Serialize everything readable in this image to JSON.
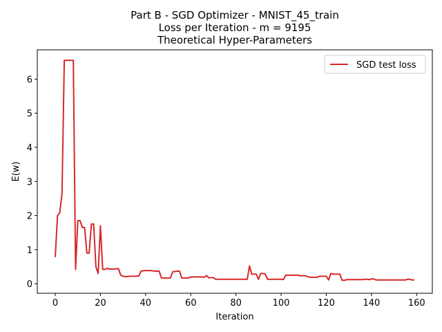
{
  "chart_data": {
    "type": "line",
    "title": [
      "Part B -  SGD Optimizer - MNIST_45_train",
      "Loss per Iteration - m = 9195",
      "Theoretical Hyper-Parameters"
    ],
    "xlabel": "Iteration",
    "ylabel": "E(w)",
    "x": [
      0,
      1,
      2,
      3,
      4,
      5,
      6,
      7,
      8,
      9,
      10,
      11,
      12,
      13,
      14,
      15,
      16,
      17,
      18,
      19,
      20,
      21,
      22,
      23,
      24,
      25,
      26,
      27,
      28,
      29,
      30,
      31,
      32,
      33,
      34,
      35,
      36,
      37,
      38,
      39,
      40,
      41,
      42,
      43,
      44,
      45,
      46,
      47,
      48,
      49,
      50,
      51,
      52,
      53,
      54,
      55,
      56,
      57,
      58,
      59,
      60,
      61,
      62,
      63,
      64,
      65,
      66,
      67,
      68,
      69,
      70,
      71,
      72,
      73,
      74,
      75,
      76,
      77,
      78,
      79,
      80,
      81,
      82,
      83,
      84,
      85,
      86,
      87,
      88,
      89,
      90,
      91,
      92,
      93,
      94,
      95,
      96,
      97,
      98,
      99,
      100,
      101,
      102,
      103,
      104,
      105,
      106,
      107,
      108,
      109,
      110,
      111,
      112,
      113,
      114,
      115,
      116,
      117,
      118,
      119,
      120,
      121,
      122,
      123,
      124,
      125,
      126,
      127,
      128,
      129,
      130,
      131,
      132,
      133,
      134,
      135,
      136,
      137,
      138,
      139,
      140,
      141,
      142,
      143,
      144,
      145,
      146,
      147,
      148,
      149,
      150,
      151,
      152,
      153,
      154,
      155,
      156,
      157,
      158,
      159
    ],
    "series": [
      {
        "name": "SGD test loss",
        "color": "#d62728",
        "values": [
          0.78,
          2.0,
          2.08,
          2.65,
          6.55,
          6.55,
          6.55,
          6.55,
          6.55,
          0.42,
          1.85,
          1.85,
          1.65,
          1.65,
          0.9,
          0.9,
          1.75,
          1.75,
          0.5,
          0.3,
          1.7,
          0.42,
          0.42,
          0.45,
          0.43,
          0.43,
          0.43,
          0.44,
          0.44,
          0.25,
          0.22,
          0.21,
          0.21,
          0.22,
          0.22,
          0.22,
          0.22,
          0.23,
          0.37,
          0.38,
          0.39,
          0.38,
          0.39,
          0.38,
          0.37,
          0.37,
          0.37,
          0.17,
          0.17,
          0.17,
          0.17,
          0.17,
          0.35,
          0.36,
          0.37,
          0.37,
          0.17,
          0.17,
          0.17,
          0.17,
          0.2,
          0.2,
          0.2,
          0.2,
          0.2,
          0.2,
          0.19,
          0.24,
          0.17,
          0.18,
          0.18,
          0.13,
          0.13,
          0.13,
          0.13,
          0.13,
          0.13,
          0.13,
          0.13,
          0.13,
          0.13,
          0.13,
          0.13,
          0.13,
          0.13,
          0.13,
          0.52,
          0.28,
          0.28,
          0.28,
          0.13,
          0.3,
          0.3,
          0.28,
          0.13,
          0.13,
          0.13,
          0.13,
          0.13,
          0.13,
          0.13,
          0.12,
          0.25,
          0.25,
          0.25,
          0.25,
          0.25,
          0.25,
          0.24,
          0.23,
          0.24,
          0.23,
          0.2,
          0.19,
          0.19,
          0.19,
          0.19,
          0.22,
          0.22,
          0.22,
          0.22,
          0.11,
          0.3,
          0.28,
          0.28,
          0.28,
          0.28,
          0.1,
          0.1,
          0.12,
          0.12,
          0.12,
          0.12,
          0.12,
          0.12,
          0.12,
          0.12,
          0.13,
          0.13,
          0.12,
          0.14,
          0.14,
          0.11,
          0.11,
          0.11,
          0.11,
          0.11,
          0.11,
          0.11,
          0.11,
          0.11,
          0.11,
          0.11,
          0.11,
          0.11,
          0.11,
          0.13,
          0.13,
          0.11,
          0.11
        ]
      }
    ],
    "xlim": [
      -7.95,
      166.95
    ],
    "xticks": [
      0,
      20,
      40,
      60,
      80,
      100,
      120,
      140,
      160
    ],
    "ylim": [
      -0.28,
      6.86
    ],
    "yticks": [
      0,
      1,
      2,
      3,
      4,
      5,
      6
    ],
    "legend": "upper right"
  }
}
